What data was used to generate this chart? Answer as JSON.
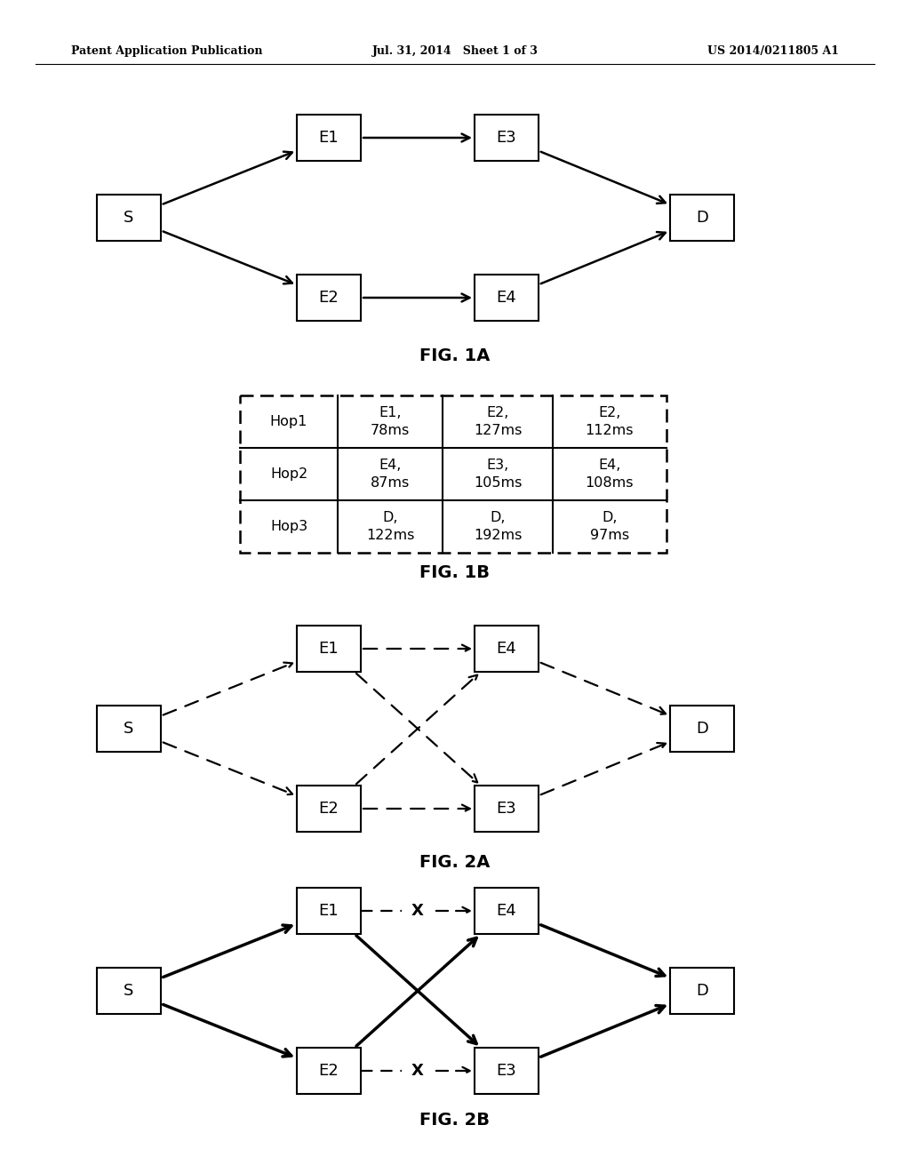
{
  "header_left": "Patent Application Publication",
  "header_mid": "Jul. 31, 2014   Sheet 1 of 3",
  "header_right": "US 2014/0211805 A1",
  "fig1a_label": "FIG. 1A",
  "fig1b_label": "FIG. 1B",
  "fig2a_label": "FIG. 2A",
  "fig2b_label": "FIG. 2B",
  "table_data": [
    [
      "Hop1",
      "E1,\n78ms",
      "E2,\n127ms",
      "E2,\n112ms"
    ],
    [
      "Hop2",
      "E4,\n87ms",
      "E3,\n105ms",
      "E4,\n108ms"
    ],
    [
      "Hop3",
      "D,\n122ms",
      "D,\n192ms",
      "D,\n97ms"
    ]
  ],
  "box_color": "#ffffff",
  "box_edge_color": "#000000",
  "text_color": "#000000",
  "background_color": "#ffffff"
}
